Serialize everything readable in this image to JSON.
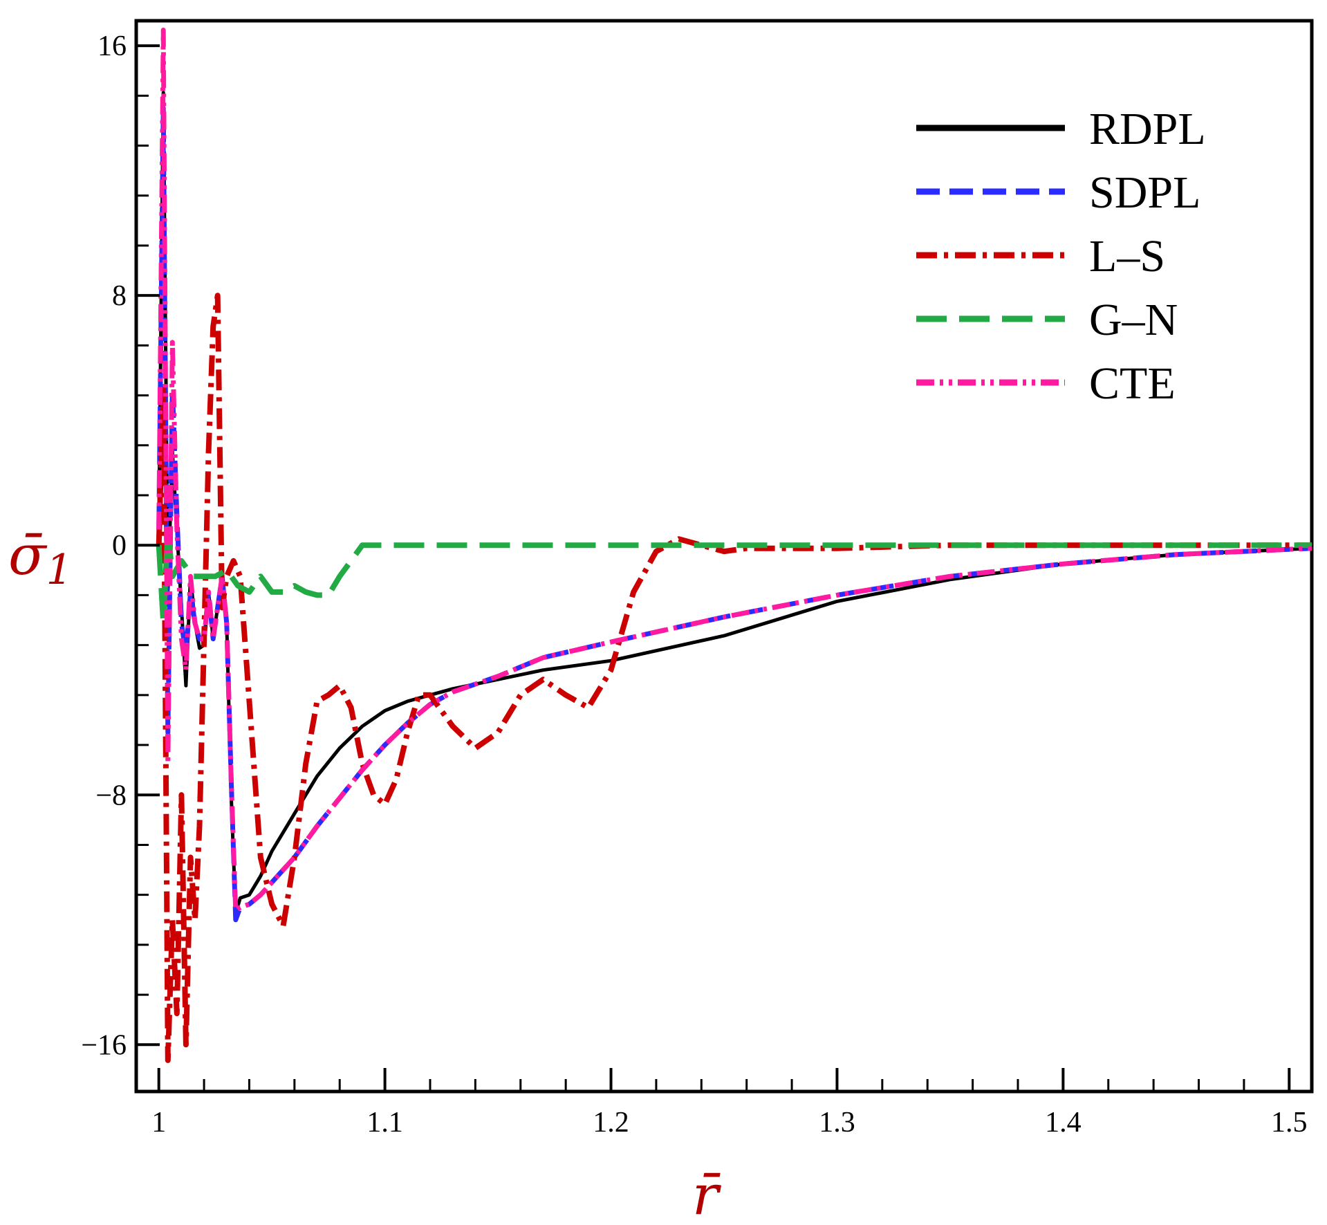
{
  "chart_data": {
    "type": "line",
    "title": "",
    "xlabel": "r̄",
    "ylabel": "σ̄",
    "ylabel_subscript": "1",
    "xlim": [
      0.99,
      1.51
    ],
    "ylim": [
      -17.5,
      16.8
    ],
    "xticks": [
      1,
      1.1,
      1.2,
      1.3,
      1.4,
      1.5
    ],
    "xtick_labels": [
      "1",
      "1.1",
      "1.2",
      "1.3",
      "1.4",
      "1.5"
    ],
    "yticks": [
      -16,
      -8,
      0,
      8,
      16
    ],
    "ytick_labels": [
      "−16",
      "−8",
      "0",
      "8",
      "16"
    ],
    "grid": false,
    "legend_position": "top-right",
    "colors": {
      "RDPL": "#000000",
      "SDPL": "#2b2bff",
      "L-S": "#cc0000",
      "G-N": "#22aa44",
      "CTE": "#ff1aa0",
      "label": "#b00000"
    },
    "series": [
      {
        "name": "RDPL",
        "style": "solid",
        "x": [
          1.0,
          1.002,
          1.004,
          1.006,
          1.008,
          1.01,
          1.012,
          1.014,
          1.016,
          1.018,
          1.02,
          1.022,
          1.024,
          1.026,
          1.028,
          1.03,
          1.032,
          1.034,
          1.036,
          1.04,
          1.045,
          1.05,
          1.06,
          1.07,
          1.08,
          1.09,
          1.1,
          1.11,
          1.12,
          1.13,
          1.15,
          1.17,
          1.2,
          1.25,
          1.3,
          1.35,
          1.4,
          1.45,
          1.51
        ],
        "values": [
          0.5,
          14.5,
          -1.5,
          3.0,
          0.5,
          -2.0,
          -4.5,
          -1.0,
          -2.5,
          -3.3,
          -3.2,
          -1.5,
          -3.0,
          -2.0,
          -1.0,
          -2.5,
          -8.0,
          -11.8,
          -11.3,
          -11.2,
          -10.6,
          -9.8,
          -8.6,
          -7.4,
          -6.5,
          -5.8,
          -5.3,
          -5.0,
          -4.8,
          -4.6,
          -4.3,
          -4.0,
          -3.7,
          -2.9,
          -1.8,
          -1.1,
          -0.6,
          -0.3,
          -0.1
        ]
      },
      {
        "name": "SDPL",
        "style": "dash",
        "x": [
          1.0,
          1.002,
          1.004,
          1.006,
          1.008,
          1.01,
          1.012,
          1.014,
          1.016,
          1.018,
          1.02,
          1.022,
          1.024,
          1.026,
          1.028,
          1.03,
          1.032,
          1.034,
          1.036,
          1.04,
          1.045,
          1.05,
          1.06,
          1.07,
          1.08,
          1.09,
          1.1,
          1.11,
          1.12,
          1.13,
          1.15,
          1.17,
          1.2,
          1.25,
          1.3,
          1.35,
          1.4,
          1.45,
          1.51
        ],
        "values": [
          0.5,
          14.0,
          -6.0,
          5.0,
          1.0,
          -2.5,
          -3.5,
          -1.5,
          -2.5,
          -3.0,
          -3.0,
          -1.5,
          -3.0,
          -2.0,
          -1.0,
          -2.5,
          -7.5,
          -12.0,
          -11.6,
          -11.5,
          -11.2,
          -10.8,
          -10.0,
          -9.0,
          -8.1,
          -7.2,
          -6.4,
          -5.7,
          -5.1,
          -4.7,
          -4.2,
          -3.6,
          -3.1,
          -2.3,
          -1.6,
          -1.0,
          -0.6,
          -0.3,
          -0.1
        ]
      },
      {
        "name": "L-S",
        "style": "dashdot",
        "x": [
          1.0,
          1.002,
          1.004,
          1.006,
          1.008,
          1.01,
          1.012,
          1.014,
          1.016,
          1.018,
          1.02,
          1.022,
          1.024,
          1.026,
          1.028,
          1.03,
          1.033,
          1.036,
          1.04,
          1.045,
          1.05,
          1.055,
          1.06,
          1.065,
          1.07,
          1.075,
          1.08,
          1.085,
          1.09,
          1.095,
          1.1,
          1.105,
          1.11,
          1.115,
          1.12,
          1.13,
          1.14,
          1.15,
          1.16,
          1.17,
          1.18,
          1.19,
          1.2,
          1.21,
          1.22,
          1.23,
          1.24,
          1.25,
          1.26,
          1.3,
          1.35,
          1.4,
          1.45,
          1.51
        ],
        "values": [
          0.0,
          5.0,
          -16.5,
          -12.0,
          -15.0,
          -8.0,
          -16.0,
          -10.0,
          -12.0,
          -9.0,
          -3.0,
          3.0,
          7.0,
          8.0,
          -2.0,
          -1.0,
          -0.5,
          -1.0,
          -5.0,
          -10.0,
          -11.5,
          -12.2,
          -10.0,
          -7.0,
          -5.0,
          -4.8,
          -4.5,
          -5.2,
          -7.0,
          -8.0,
          -8.3,
          -7.5,
          -6.0,
          -4.8,
          -4.8,
          -5.8,
          -6.5,
          -6.0,
          -4.8,
          -4.3,
          -4.8,
          -5.2,
          -4.0,
          -1.5,
          -0.2,
          0.2,
          0.0,
          -0.2,
          -0.1,
          -0.1,
          0.0,
          0.0,
          0.0,
          0.0
        ]
      },
      {
        "name": "G-N",
        "style": "longdash",
        "x": [
          1.0,
          1.002,
          1.004,
          1.006,
          1.01,
          1.015,
          1.02,
          1.025,
          1.03,
          1.035,
          1.04,
          1.045,
          1.05,
          1.055,
          1.06,
          1.065,
          1.07,
          1.075,
          1.08,
          1.085,
          1.09,
          1.1,
          1.2,
          1.3,
          1.4,
          1.51
        ],
        "values": [
          0.0,
          -2.5,
          0.5,
          -1.0,
          -0.5,
          -1.0,
          -1.0,
          -1.0,
          -0.8,
          -1.3,
          -1.5,
          -1.0,
          -1.5,
          -1.5,
          -1.3,
          -1.5,
          -1.6,
          -1.6,
          -1.0,
          -0.5,
          0.0,
          0.0,
          0.0,
          0.0,
          0.0,
          0.0
        ]
      },
      {
        "name": "CTE",
        "style": "dashdotdot",
        "x": [
          1.0,
          1.002,
          1.004,
          1.006,
          1.008,
          1.01,
          1.012,
          1.014,
          1.016,
          1.018,
          1.02,
          1.022,
          1.024,
          1.026,
          1.028,
          1.03,
          1.032,
          1.034,
          1.036,
          1.04,
          1.045,
          1.05,
          1.06,
          1.07,
          1.08,
          1.09,
          1.1,
          1.11,
          1.12,
          1.13,
          1.15,
          1.17,
          1.2,
          1.25,
          1.3,
          1.35,
          1.4,
          1.45,
          1.51
        ],
        "values": [
          0.5,
          16.5,
          -7.0,
          6.5,
          0.5,
          -3.0,
          -4.0,
          -1.0,
          -2.5,
          -3.0,
          -3.0,
          -1.5,
          -3.0,
          -2.0,
          -1.0,
          -2.5,
          -7.5,
          -11.7,
          -11.6,
          -11.5,
          -11.2,
          -10.8,
          -10.0,
          -9.0,
          -8.1,
          -7.2,
          -6.4,
          -5.7,
          -5.1,
          -4.7,
          -4.2,
          -3.6,
          -3.1,
          -2.3,
          -1.6,
          -1.0,
          -0.6,
          -0.3,
          -0.1
        ]
      }
    ],
    "legend": [
      "RDPL",
      "SDPL",
      "L–S",
      "G–N",
      "CTE"
    ]
  }
}
